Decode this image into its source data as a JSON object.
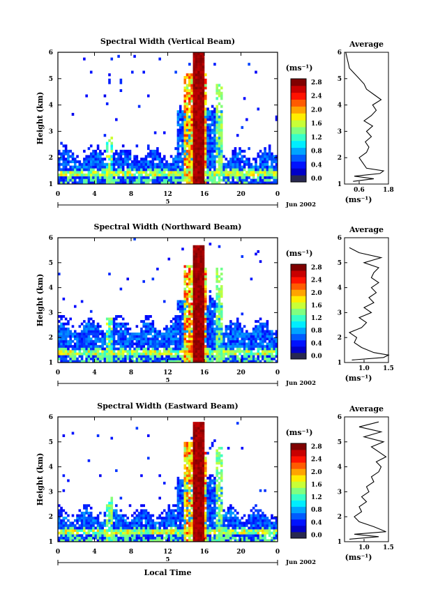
{
  "figure": {
    "date_label": "Jun 2002",
    "day_label": "5",
    "xlabel": "Local Time",
    "colorbar_unit": "(ms⁻¹)",
    "average_title": "Average",
    "average_unit": "(ms⁻¹)"
  },
  "chart_data": [
    {
      "type": "heatmap",
      "title": "Spectral Width (Vertical Beam)",
      "ylabel": "Height (km)",
      "xlim": [
        0,
        24
      ],
      "ylim": [
        1,
        6
      ],
      "x_ticks": [
        "0",
        "4",
        "8",
        "12",
        "16",
        "20",
        "0"
      ],
      "y_ticks": [
        "1",
        "2",
        "3",
        "4",
        "5",
        "6"
      ],
      "colorbar": {
        "range": [
          0.0,
          2.8
        ],
        "ticks": [
          "0.0",
          "0.4",
          "0.8",
          "1.2",
          "1.6",
          "2.0",
          "2.4",
          "2.8"
        ]
      },
      "average": {
        "xlim": [
          0.0,
          1.8
        ],
        "x_ticks": [
          "0.6",
          "1.8"
        ],
        "y_ticks": [
          "1",
          "2",
          "3",
          "4",
          "5",
          "6"
        ],
        "height": [
          1.1,
          1.2,
          1.3,
          1.4,
          1.5,
          1.6,
          1.8,
          2.0,
          2.2,
          2.4,
          2.6,
          2.8,
          3.0,
          3.2,
          3.4,
          3.6,
          3.8,
          4.0,
          4.2,
          4.4,
          4.6,
          4.8,
          5.0,
          5.2,
          5.4,
          5.6,
          5.8,
          6.0
        ],
        "width": [
          0.35,
          1.2,
          0.4,
          1.45,
          1.6,
          0.9,
          0.75,
          0.6,
          0.9,
          1.0,
          0.85,
          1.1,
          0.9,
          1.15,
          0.8,
          1.1,
          1.3,
          1.15,
          1.5,
          1.2,
          0.9,
          0.8,
          0.6,
          0.4,
          0.2,
          0.15,
          0.1,
          0.05
        ]
      }
    },
    {
      "type": "heatmap",
      "title": "Spectral Width (Northward Beam)",
      "ylabel": "Height (km)",
      "xlim": [
        0,
        24
      ],
      "ylim": [
        1,
        6
      ],
      "x_ticks": [
        "0",
        "4",
        "8",
        "12",
        "16",
        "20",
        "0"
      ],
      "y_ticks": [
        "1",
        "2",
        "3",
        "4",
        "5",
        "6"
      ],
      "colorbar": {
        "range": [
          0.0,
          2.8
        ],
        "ticks": [
          "0.0",
          "0.4",
          "0.8",
          "1.2",
          "1.6",
          "2.0",
          "2.4",
          "2.8"
        ]
      },
      "average": {
        "xlim": [
          0.6,
          1.5
        ],
        "x_ticks": [
          "1.0",
          "1.5"
        ],
        "y_ticks": [
          "1",
          "2",
          "3",
          "4",
          "5",
          "6"
        ],
        "height": [
          1.1,
          1.2,
          1.3,
          1.4,
          1.6,
          1.8,
          2.0,
          2.2,
          2.4,
          2.6,
          2.8,
          3.0,
          3.2,
          3.4,
          3.6,
          3.8,
          4.0,
          4.2,
          4.4,
          4.6,
          4.8,
          5.0,
          5.2,
          5.4,
          5.6
        ],
        "width": [
          0.75,
          1.4,
          1.5,
          1.2,
          0.95,
          0.8,
          0.85,
          0.7,
          0.95,
          1.05,
          0.9,
          1.15,
          1.0,
          1.2,
          1.1,
          1.25,
          1.15,
          1.3,
          1.15,
          1.2,
          1.3,
          1.0,
          1.35,
          0.9,
          0.7
        ]
      }
    },
    {
      "type": "heatmap",
      "title": "Spectral Width (Eastward Beam)",
      "ylabel": "Height (km)",
      "xlim": [
        0,
        24
      ],
      "ylim": [
        1,
        6
      ],
      "x_ticks": [
        "0",
        "4",
        "8",
        "12",
        "16",
        "20",
        "0"
      ],
      "y_ticks": [
        "1",
        "2",
        "3",
        "4",
        "5",
        "6"
      ],
      "colorbar": {
        "range": [
          0.0,
          2.8
        ],
        "ticks": [
          "0.0",
          "0.4",
          "0.8",
          "1.2",
          "1.6",
          "2.0",
          "2.4",
          "2.8"
        ]
      },
      "average": {
        "xlim": [
          0.6,
          1.5
        ],
        "x_ticks": [
          "1.0",
          "1.5"
        ],
        "y_ticks": [
          "1",
          "2",
          "3",
          "4",
          "5",
          "6"
        ],
        "height": [
          1.1,
          1.2,
          1.3,
          1.4,
          1.6,
          1.8,
          2.0,
          2.2,
          2.4,
          2.6,
          2.8,
          3.0,
          3.2,
          3.4,
          3.6,
          3.8,
          4.0,
          4.2,
          4.4,
          4.6,
          4.8,
          5.0,
          5.2,
          5.4,
          5.6,
          5.8
        ],
        "width": [
          0.7,
          1.3,
          0.8,
          1.45,
          1.2,
          0.9,
          0.8,
          0.95,
          0.9,
          1.05,
          0.95,
          1.1,
          1.05,
          1.2,
          1.15,
          1.3,
          1.35,
          1.25,
          1.45,
          1.3,
          1.15,
          1.4,
          1.0,
          1.35,
          0.9,
          1.3
        ]
      }
    }
  ]
}
